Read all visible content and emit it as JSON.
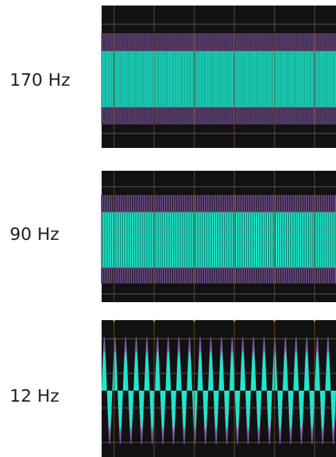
{
  "panels": [
    {
      "label": "170 Hz"
    },
    {
      "label": "90 Hz"
    },
    {
      "label": "12 Hz"
    }
  ]
}
